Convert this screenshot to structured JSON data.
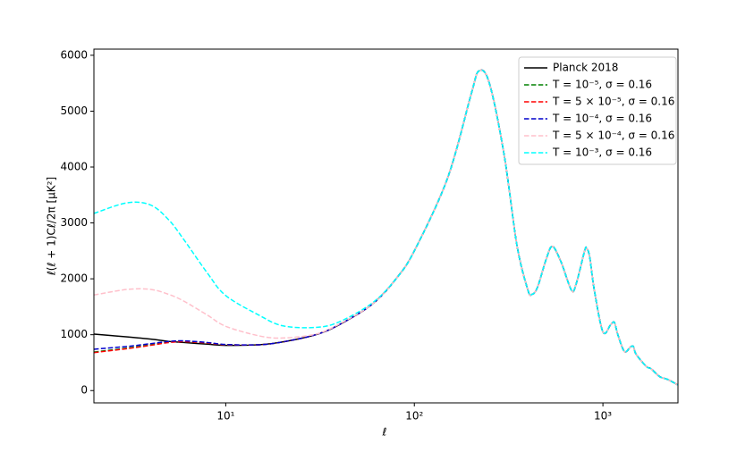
{
  "chart_data": {
    "type": "line",
    "x_label": "ℓ",
    "y_label": "ℓ(ℓ + 1)Cℓ/2π [μK²]",
    "x_scale": "log",
    "xlim": [
      2,
      2500
    ],
    "ylim": [
      -220,
      6110
    ],
    "xticks": [
      {
        "value": 10,
        "label": "10¹"
      },
      {
        "value": 100,
        "label": "10²"
      },
      {
        "value": 1000,
        "label": "10³"
      }
    ],
    "yticks": [
      0,
      1000,
      2000,
      3000,
      4000,
      5000,
      6000
    ],
    "legend": "upper right",
    "x": [
      2,
      3,
      4,
      5,
      6,
      8,
      10,
      15,
      20,
      30,
      40,
      60,
      80,
      100,
      150,
      200,
      220,
      250,
      300,
      350,
      400,
      420,
      450,
      500,
      540,
      600,
      680,
      720,
      800,
      820,
      850,
      900,
      1000,
      1100,
      1150,
      1200,
      1300,
      1400,
      1450,
      1500,
      1700,
      1800,
      2000,
      2200,
      2500
    ],
    "series": [
      {
        "name": "Planck 2018",
        "color": "#000000",
        "dashed": false,
        "values": [
          1010,
          960,
          920,
          880,
          860,
          830,
          810,
          820,
          870,
          1000,
          1180,
          1550,
          2000,
          2500,
          3800,
          5300,
          5720,
          5500,
          4200,
          2600,
          1800,
          1720,
          1850,
          2350,
          2580,
          2300,
          1800,
          1900,
          2500,
          2540,
          2400,
          1800,
          1050,
          1180,
          1220,
          1000,
          700,
          780,
          790,
          650,
          430,
          390,
          250,
          200,
          100
        ]
      },
      {
        "name": "T = 10⁻⁵, σ = 0.16",
        "color": "#008000",
        "dashed": true,
        "values": [
          690,
          760,
          820,
          870,
          880,
          850,
          820,
          820,
          870,
          1000,
          1180,
          1550,
          2000,
          2500,
          3800,
          5300,
          5720,
          5500,
          4200,
          2600,
          1800,
          1720,
          1850,
          2350,
          2580,
          2300,
          1800,
          1900,
          2500,
          2540,
          2400,
          1800,
          1050,
          1180,
          1220,
          1000,
          700,
          780,
          790,
          650,
          430,
          390,
          250,
          200,
          100
        ]
      },
      {
        "name": "T = 5 × 10⁻⁵, σ = 0.16",
        "color": "#ff0000",
        "dashed": true,
        "values": [
          680,
          750,
          810,
          860,
          875,
          850,
          820,
          820,
          870,
          1000,
          1180,
          1550,
          2000,
          2500,
          3800,
          5300,
          5720,
          5500,
          4200,
          2600,
          1800,
          1720,
          1850,
          2350,
          2580,
          2300,
          1800,
          1900,
          2500,
          2540,
          2400,
          1800,
          1050,
          1180,
          1220,
          1000,
          700,
          780,
          790,
          650,
          430,
          390,
          250,
          200,
          100
        ]
      },
      {
        "name": "T = 10⁻⁴, σ = 0.16",
        "color": "#0000cc",
        "dashed": true,
        "values": [
          740,
          790,
          840,
          880,
          890,
          860,
          825,
          820,
          870,
          1000,
          1180,
          1550,
          2000,
          2500,
          3800,
          5300,
          5720,
          5500,
          4200,
          2600,
          1800,
          1720,
          1850,
          2350,
          2580,
          2300,
          1800,
          1900,
          2500,
          2540,
          2400,
          1800,
          1050,
          1180,
          1220,
          1000,
          700,
          780,
          790,
          650,
          430,
          390,
          250,
          200,
          100
        ]
      },
      {
        "name": "T = 5 × 10⁻⁴, σ = 0.16",
        "color": "#ffc0cb",
        "dashed": true,
        "values": [
          1710,
          1810,
          1810,
          1720,
          1600,
          1350,
          1150,
          980,
          940,
          1010,
          1190,
          1550,
          2000,
          2500,
          3800,
          5300,
          5720,
          5500,
          4200,
          2600,
          1800,
          1720,
          1850,
          2350,
          2580,
          2300,
          1800,
          1900,
          2500,
          2540,
          2400,
          1800,
          1050,
          1180,
          1220,
          1000,
          700,
          780,
          790,
          650,
          430,
          390,
          250,
          200,
          100
        ]
      },
      {
        "name": "T = 10⁻³, σ = 0.16",
        "color": "#00ffff",
        "dashed": true,
        "values": [
          3170,
          3360,
          3320,
          3050,
          2700,
          2100,
          1700,
          1350,
          1160,
          1130,
          1230,
          1570,
          2000,
          2500,
          3800,
          5300,
          5720,
          5500,
          4200,
          2600,
          1800,
          1720,
          1850,
          2350,
          2580,
          2300,
          1800,
          1900,
          2500,
          2540,
          2400,
          1800,
          1050,
          1180,
          1220,
          1000,
          700,
          780,
          790,
          650,
          430,
          390,
          250,
          200,
          100
        ]
      }
    ]
  }
}
